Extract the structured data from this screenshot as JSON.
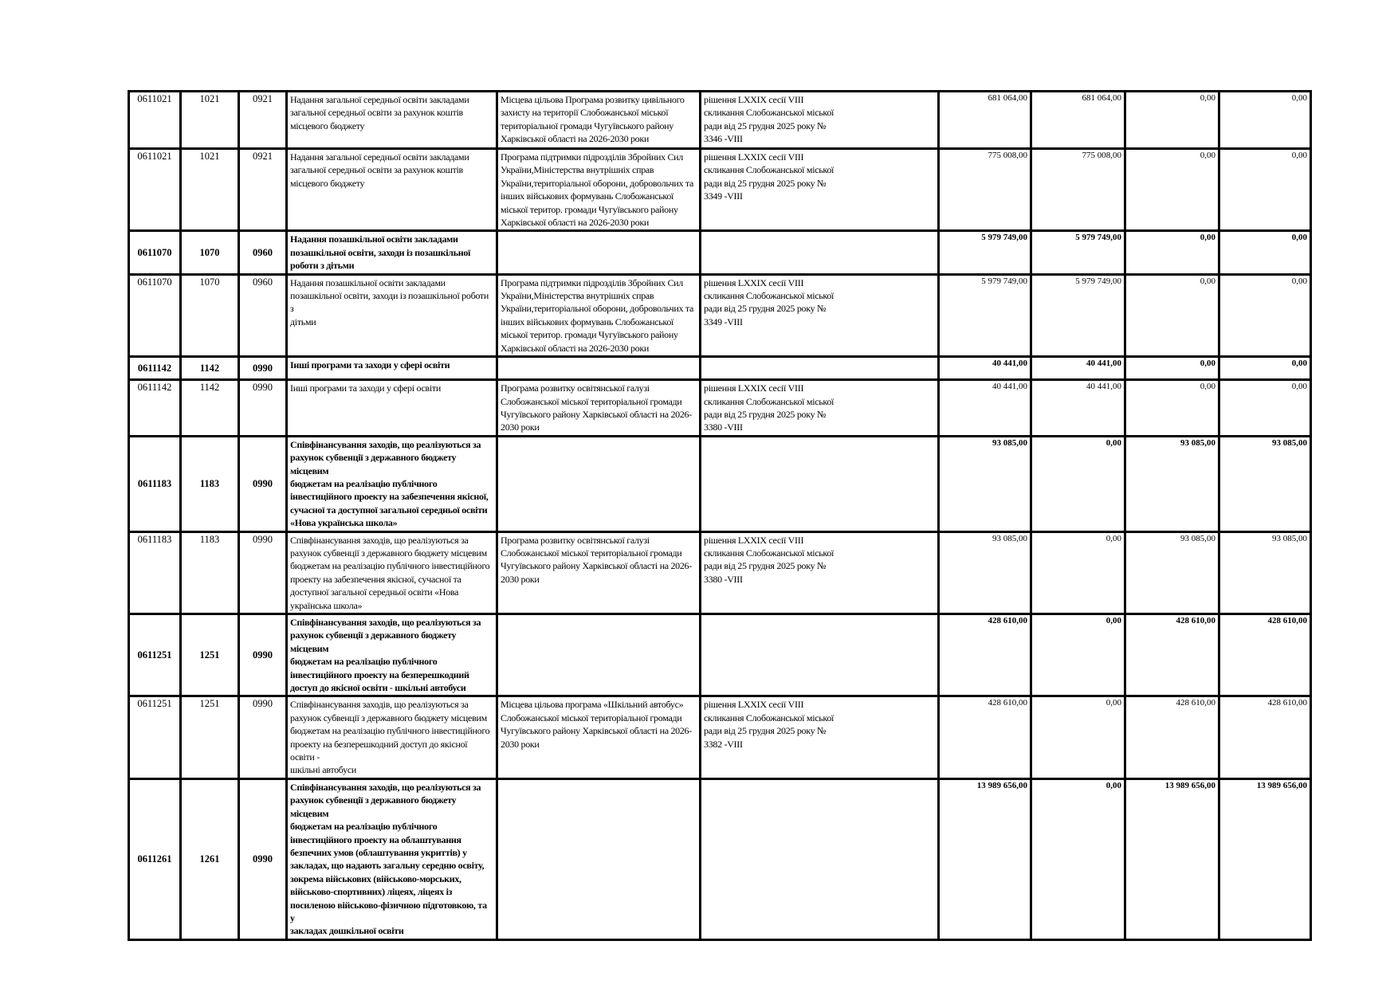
{
  "document": {
    "language": "uk",
    "table": {
      "rows": [
        {
          "code": "0611021",
          "code_tpkvkmb": "1021",
          "code_fkvkb": "0921",
          "name": "Надання загальної середньої освіти закладами\nзагальної середньої освіти за рахунок коштів\nмісцевого бюджету",
          "program": "Місцева цільова Програма розвитку цивільного\nзахисту  на території Слобожанської  міської\nтериторіальної громади Чугуївського району\nХарківської області на 2026-2030 роки",
          "decision": "рішення LXXIX сесії VIII\nскликання  Слобожанської  міської\nради  від  25 грудня  2025 року №\n3346 -VIII",
          "values": [
            "681 064,00",
            "681 064,00",
            "0,00",
            "0,00"
          ],
          "bold": false
        },
        {
          "code": "0611021",
          "code_tpkvkmb": "1021",
          "code_fkvkb": "0921",
          "name": "Надання загальної середньої освіти закладами\nзагальної середньої освіти за рахунок коштів\nмісцевого бюджету",
          "program": "Програма підтримки підрозділів Збройних Сил\nУкраїни,Міністерства внутрішніх справ\nУкраїни,територіальної оборони, добровольчих та\nінших військових формувань Слобожанської\nміської  територ. громади Чугуївського району\nХарківської області на 2026-2030 роки",
          "decision": "рішення LXXIX сесії VIII\nскликання  Слобожанської  міської\nради  від  25 грудня  2025 року №\n3349 -VIII",
          "values": [
            "775 008,00",
            "775 008,00",
            "0,00",
            "0,00"
          ],
          "bold": false
        },
        {
          "code": "0611070",
          "code_tpkvkmb": "1070",
          "code_fkvkb": "0960",
          "name": "Надання позашкільної освіти закладами\nпозашкільної освіти, заходи із позашкільної\nроботи з дітьми",
          "program": "",
          "decision": "",
          "values": [
            "5 979 749,00",
            "5 979 749,00",
            "0,00",
            "0,00"
          ],
          "bold": true
        },
        {
          "code": "0611070",
          "code_tpkvkmb": "1070",
          "code_fkvkb": "0960",
          "name": "Надання позашкільної освіти закладами\nпозашкільної освіти, заходи із позашкільної роботи з\nдітьми",
          "program": "Програма підтримки підрозділів Збройних Сил\nУкраїни,Міністерства внутрішніх справ\nУкраїни,територіальної оборони, добровольчих та\nінших військових формувань Слобожанської\nміської  територ. громади Чугуївського району\nХарківської області на 2026-2030 роки",
          "decision": "рішення LXXIX сесії VIII\nскликання  Слобожанської  міської\nради  від  25 грудня  2025 року №\n3349 -VIII",
          "values": [
            "5 979 749,00",
            "5 979 749,00",
            "0,00",
            "0,00"
          ],
          "bold": false
        },
        {
          "code": "0611142",
          "code_tpkvkmb": "1142",
          "code_fkvkb": "0990",
          "name": "Інші програми та заходи у сфері освіти",
          "program": "",
          "decision": "",
          "values": [
            "40 441,00",
            "40 441,00",
            "0,00",
            "0,00"
          ],
          "bold": true
        },
        {
          "code": "0611142",
          "code_tpkvkmb": "1142",
          "code_fkvkb": "0990",
          "name": "Інші програми та заходи у сфері освіти",
          "program": "Програма розвитку освітянської галузі\nСлобожанської  міської територіальної громади\nЧугуївського району Харківської області на 2026-\n2030 роки",
          "decision": "рішення LXXIX сесії VIII\nскликання  Слобожанської  міської\nради  від  25 грудня  2025 року №\n3380  -VIII",
          "values": [
            "40 441,00",
            "40 441,00",
            "0,00",
            "0,00"
          ],
          "bold": false
        },
        {
          "code": "0611183",
          "code_tpkvkmb": "1183",
          "code_fkvkb": "0990",
          "name": "Співфінансування заходів, що реалізуються за\nрахунок субвенції з державного бюджету місцевим\nбюджетам на реалізацію публічного\nінвестиційного проекту на забезпечення якісної,\nсучасної та доступної загальної середньої освіти\n«Нова українська школа»",
          "program": "",
          "decision": "",
          "values": [
            "93 085,00",
            "0,00",
            "93 085,00",
            "93 085,00"
          ],
          "bold": true
        },
        {
          "code": "0611183",
          "code_tpkvkmb": "1183",
          "code_fkvkb": "0990",
          "name": "Співфінансування заходів, що реалізуються за\nрахунок субвенції з державного бюджету місцевим\nбюджетам на реалізацію публічного інвестиційного\nпроекту на забезпечення якісної, сучасної та\nдоступної загальної середньої освіти «Нова\nукраїнська школа»",
          "program": "Програма розвитку освітянської галузі\nСлобожанської  міської територіальної громади\nЧугуївського району Харківської області на 2026-\n2030 роки",
          "decision": "рішення LXXIX сесії VIII\nскликання  Слобожанської  міської\nради  від  25 грудня  2025 року №\n3380  -VIII",
          "values": [
            "93 085,00",
            "0,00",
            "93 085,00",
            "93 085,00"
          ],
          "bold": false
        },
        {
          "code": "0611251",
          "code_tpkvkmb": "1251",
          "code_fkvkb": "0990",
          "name": "Співфінансування заходів, що реалізуються за\nрахунок субвенції з державного бюджету місцевим\nбюджетам на реалізацію публічного\nінвестиційного проекту на безперешкодний\nдоступ до якісної освіти  - шкільні автобуси",
          "program": "",
          "decision": "",
          "values": [
            "428 610,00",
            "0,00",
            "428 610,00",
            "428 610,00"
          ],
          "bold": true
        },
        {
          "code": "0611251",
          "code_tpkvkmb": "1251",
          "code_fkvkb": "0990",
          "name": "Співфінансування заходів, що реалізуються за\nрахунок субвенції з державного бюджету місцевим\nбюджетам на реалізацію публічного інвестиційного\nпроекту на безперешкодний доступ до якісної освіти -\nшкільні автобуси",
          "program": "Місцева цільова  програма  «Шкільний автобус»\nСлобожанської міської територіальної громади\nЧугуївського району Харківської області на 2026-\n2030 роки",
          "decision": "рішення LXXIX сесії VIII\nскликання  Слобожанської  міської\nради  від  25 грудня  2025 року №\n3382  -VIII",
          "values": [
            "428 610,00",
            "0,00",
            "428 610,00",
            "428 610,00"
          ],
          "bold": false
        },
        {
          "code": "0611261",
          "code_tpkvkmb": "1261",
          "code_fkvkb": "0990",
          "name": "Співфінансування заходів, що реалізуються за\nрахунок субвенції з державного бюджету місцевим\nбюджетам на реалізацію публічного\nінвестиційного проекту на облаштування\nбезпечних умов (облаштування укриттів) у\nзакладах, що надають загальну середню освіту,\nзокрема військових (військово-морських,\nвійськово-спортивних) ліцеях, ліцеях із\nпосиленою військово-фізичною підготовкою, та у\nзакладах дошкільної освіти",
          "program": "",
          "decision": "",
          "values": [
            "13 989 656,00",
            "0,00",
            "13 989 656,00",
            "13 989 656,00"
          ],
          "bold": true
        }
      ]
    }
  }
}
